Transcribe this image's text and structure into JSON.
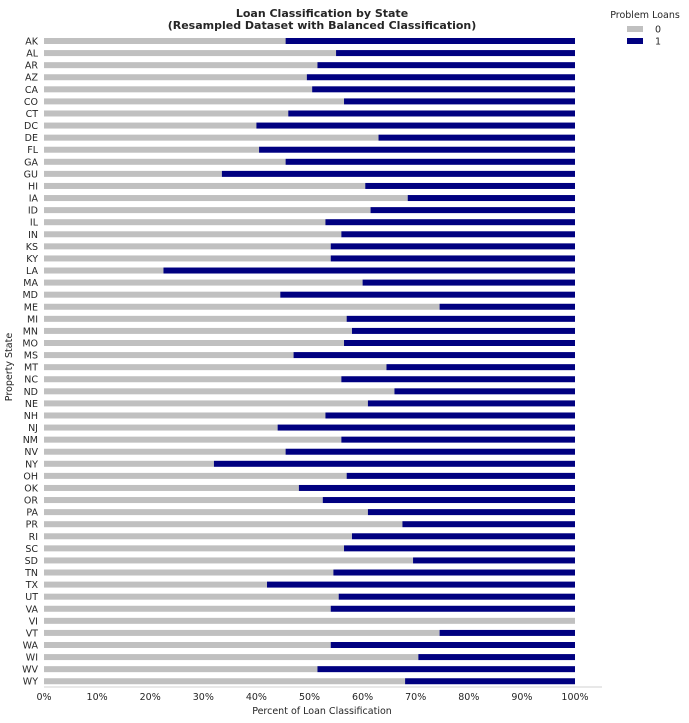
{
  "chart_data": {
    "type": "bar",
    "orientation": "horizontal",
    "stacked": true,
    "title": "Loan Classification by State",
    "subtitle": "(Resampled Dataset with Balanced Classification)",
    "xlabel": "Percent of Loan Classification",
    "ylabel": "Property State",
    "xlim": [
      0,
      100
    ],
    "xticks": [
      "0%",
      "10%",
      "20%",
      "30%",
      "40%",
      "50%",
      "60%",
      "70%",
      "80%",
      "90%",
      "100%"
    ],
    "grid": false,
    "legend": {
      "title": "Problem Loans",
      "placement": "outside-top-right"
    },
    "categories": [
      "AK",
      "AL",
      "AR",
      "AZ",
      "CA",
      "CO",
      "CT",
      "DC",
      "DE",
      "FL",
      "GA",
      "GU",
      "HI",
      "IA",
      "ID",
      "IL",
      "IN",
      "KS",
      "KY",
      "LA",
      "MA",
      "MD",
      "ME",
      "MI",
      "MN",
      "MO",
      "MS",
      "MT",
      "NC",
      "ND",
      "NE",
      "NH",
      "NJ",
      "NM",
      "NV",
      "NY",
      "OH",
      "OK",
      "OR",
      "PA",
      "PR",
      "RI",
      "SC",
      "SD",
      "TN",
      "TX",
      "UT",
      "VA",
      "VI",
      "VT",
      "WA",
      "WI",
      "WV",
      "WY"
    ],
    "series": [
      {
        "name": "0",
        "color": "#c0c0c0",
        "values": [
          45.5,
          55,
          51.5,
          49.5,
          50.5,
          56.5,
          46,
          40,
          63,
          40.5,
          45.5,
          33.5,
          60.5,
          68.5,
          61.5,
          53,
          56,
          54,
          54,
          22.5,
          60,
          44.5,
          74.5,
          57,
          58,
          56.5,
          47,
          64.5,
          56,
          66,
          61,
          53,
          44,
          56,
          45.5,
          32,
          57,
          48,
          52.5,
          61,
          67.5,
          58,
          56.5,
          69.5,
          54.5,
          42,
          55.5,
          54,
          100,
          74.5,
          54,
          70.5,
          51.5,
          68
        ]
      },
      {
        "name": "1",
        "color": "#000080",
        "values": [
          54.5,
          45,
          48.5,
          50.5,
          49.5,
          43.5,
          54,
          60,
          37,
          59.5,
          54.5,
          66.5,
          39.5,
          31.5,
          38.5,
          47,
          44,
          46,
          46,
          77.5,
          40,
          55.5,
          25.5,
          43,
          42,
          43.5,
          53,
          35.5,
          44,
          34,
          39,
          47,
          56,
          44,
          54.5,
          68,
          43,
          52,
          47.5,
          39,
          32.5,
          42,
          43.5,
          30.5,
          45.5,
          58,
          44.5,
          46,
          0,
          25.5,
          46,
          29.5,
          48.5,
          32
        ]
      }
    ]
  }
}
